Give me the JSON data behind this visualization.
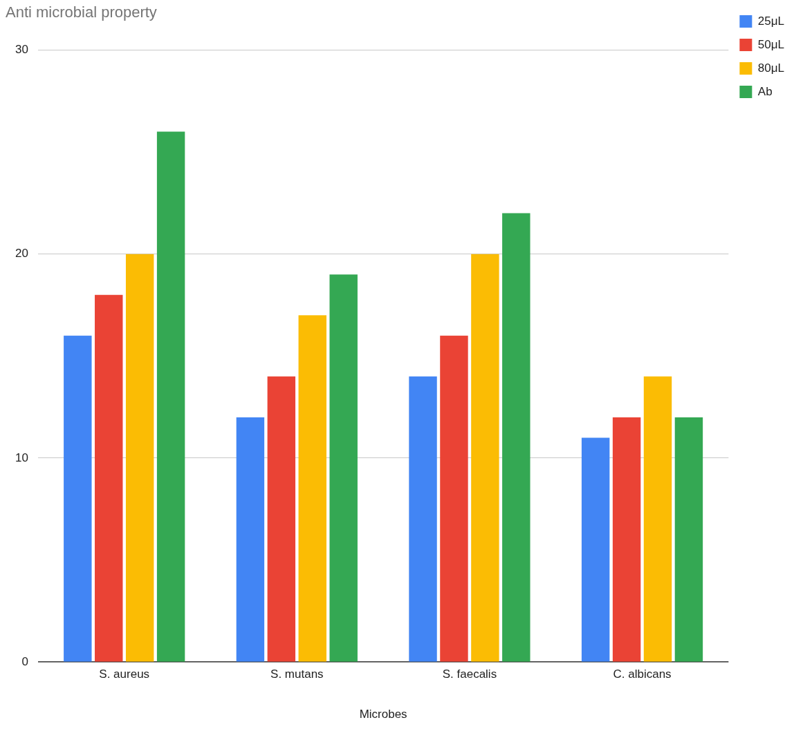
{
  "chart_data": {
    "type": "bar",
    "title": "Anti microbial property",
    "xlabel": "Microbes",
    "categories": [
      "S. aureus",
      "S. mutans",
      "S. faecalis",
      "C. albicans"
    ],
    "series": [
      {
        "name": "25μL",
        "color": "#4285f4",
        "values": [
          16,
          12,
          14,
          11
        ]
      },
      {
        "name": "50μL",
        "color": "#ea4335",
        "values": [
          18,
          14,
          16,
          12
        ]
      },
      {
        "name": "80μL",
        "color": "#fbbc04",
        "values": [
          20,
          17,
          20,
          14
        ]
      },
      {
        "name": "Ab",
        "color": "#34a853",
        "values": [
          26,
          19,
          22,
          12
        ]
      }
    ],
    "ylim": [
      0,
      30
    ],
    "yticks": [
      0,
      10,
      20,
      30
    ],
    "grid": "y",
    "legend": "top right"
  }
}
